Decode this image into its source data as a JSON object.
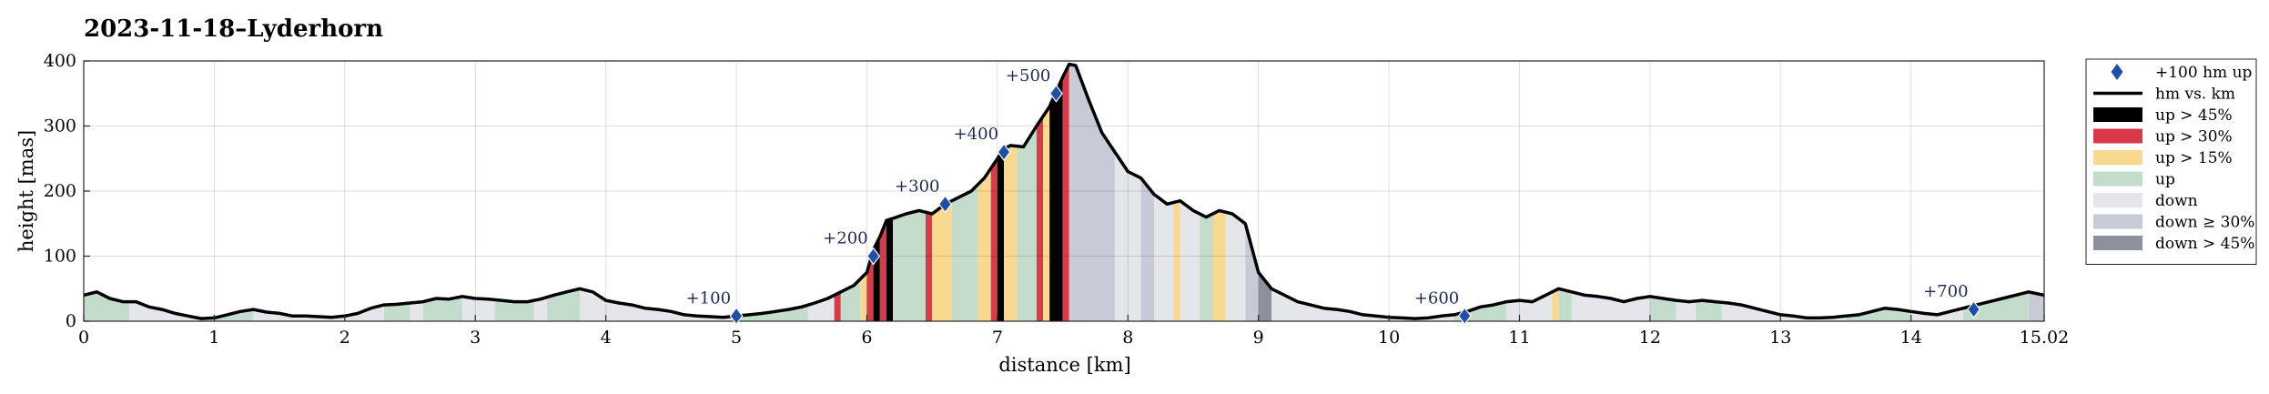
{
  "chart_data": {
    "type": "area",
    "title": "2023-11-18–Lyderhorn",
    "xlabel": "distance [km]",
    "ylabel": "height [mas]",
    "xlim": [
      0,
      15.02
    ],
    "ylim": [
      0,
      400
    ],
    "xticks": [
      "0",
      "1",
      "2",
      "3",
      "4",
      "5",
      "6",
      "7",
      "8",
      "9",
      "10",
      "11",
      "12",
      "13",
      "14",
      "15.02"
    ],
    "xtick_values": [
      0,
      1,
      2,
      3,
      4,
      5,
      6,
      7,
      8,
      9,
      10,
      11,
      12,
      13,
      14,
      15.02
    ],
    "yticks": [
      "0",
      "100",
      "200",
      "300",
      "400"
    ],
    "ytick_values": [
      0,
      100,
      200,
      300,
      400
    ],
    "grid": true,
    "legend_position": "outside-right",
    "legend": [
      {
        "key": "milestone",
        "label": "+100 hm up",
        "style": "marker",
        "color": "#1f4fa8"
      },
      {
        "key": "line",
        "label": "hm vs. km",
        "style": "line",
        "color": "#000000"
      },
      {
        "key": "up45",
        "label": "up > 45%",
        "style": "patch",
        "color": "#000000"
      },
      {
        "key": "up30",
        "label": "up > 30%",
        "style": "patch",
        "color": "#d93a4a"
      },
      {
        "key": "up15",
        "label": "up > 15%",
        "style": "patch",
        "color": "#f9d98f"
      },
      {
        "key": "up",
        "label": "up",
        "style": "patch",
        "color": "#c3dccb"
      },
      {
        "key": "down",
        "label": "down",
        "style": "patch",
        "color": "#e4e6e9"
      },
      {
        "key": "down30",
        "label": "down ≥ 30%",
        "style": "patch",
        "color": "#c8cad6"
      },
      {
        "key": "down45",
        "label": "down > 45%",
        "style": "patch",
        "color": "#8f909d"
      }
    ],
    "series": [
      {
        "name": "hm vs. km",
        "x": [
          0,
          0.1,
          0.2,
          0.3,
          0.4,
          0.5,
          0.6,
          0.7,
          0.8,
          0.9,
          1.0,
          1.1,
          1.2,
          1.3,
          1.4,
          1.5,
          1.6,
          1.7,
          1.8,
          1.9,
          2.0,
          2.1,
          2.2,
          2.3,
          2.4,
          2.5,
          2.6,
          2.7,
          2.8,
          2.9,
          3.0,
          3.1,
          3.2,
          3.3,
          3.4,
          3.5,
          3.6,
          3.7,
          3.8,
          3.9,
          4.0,
          4.1,
          4.2,
          4.3,
          4.4,
          4.5,
          4.6,
          4.7,
          4.8,
          4.9,
          5.0,
          5.1,
          5.2,
          5.3,
          5.4,
          5.5,
          5.6,
          5.7,
          5.8,
          5.9,
          6.0,
          6.05,
          6.1,
          6.15,
          6.2,
          6.3,
          6.4,
          6.5,
          6.6,
          6.7,
          6.8,
          6.9,
          7.0,
          7.05,
          7.1,
          7.2,
          7.3,
          7.4,
          7.5,
          7.55,
          7.6,
          7.7,
          7.8,
          7.9,
          8.0,
          8.1,
          8.2,
          8.3,
          8.4,
          8.5,
          8.6,
          8.7,
          8.8,
          8.9,
          9.0,
          9.1,
          9.2,
          9.3,
          9.4,
          9.5,
          9.6,
          9.7,
          9.8,
          9.9,
          10.0,
          10.1,
          10.2,
          10.3,
          10.4,
          10.5,
          10.6,
          10.7,
          10.8,
          10.9,
          11.0,
          11.1,
          11.2,
          11.3,
          11.4,
          11.5,
          11.6,
          11.7,
          11.8,
          11.9,
          12.0,
          12.1,
          12.2,
          12.3,
          12.4,
          12.5,
          12.6,
          12.7,
          12.8,
          12.9,
          13.0,
          13.1,
          13.2,
          13.3,
          13.4,
          13.5,
          13.6,
          13.7,
          13.8,
          13.9,
          14.0,
          14.1,
          14.2,
          14.3,
          14.4,
          14.5,
          14.6,
          14.7,
          14.8,
          14.9,
          15.02
        ],
        "y": [
          40,
          45,
          35,
          30,
          30,
          22,
          18,
          12,
          8,
          4,
          5,
          10,
          15,
          18,
          14,
          12,
          8,
          8,
          7,
          6,
          8,
          12,
          20,
          25,
          26,
          28,
          30,
          35,
          34,
          38,
          35,
          34,
          32,
          30,
          30,
          34,
          40,
          45,
          50,
          45,
          32,
          28,
          25,
          20,
          18,
          15,
          10,
          8,
          7,
          6,
          8,
          10,
          12,
          15,
          18,
          22,
          28,
          35,
          45,
          55,
          75,
          110,
          130,
          155,
          158,
          165,
          170,
          165,
          180,
          190,
          200,
          220,
          250,
          265,
          270,
          268,
          300,
          330,
          375,
          395,
          393,
          340,
          290,
          260,
          230,
          220,
          195,
          180,
          185,
          170,
          160,
          170,
          165,
          150,
          75,
          50,
          40,
          30,
          25,
          20,
          18,
          15,
          10,
          8,
          6,
          5,
          4,
          5,
          8,
          10,
          15,
          22,
          25,
          30,
          32,
          30,
          40,
          50,
          45,
          40,
          38,
          35,
          30,
          35,
          38,
          35,
          32,
          30,
          32,
          30,
          28,
          25,
          20,
          15,
          10,
          8,
          5,
          5,
          6,
          8,
          10,
          15,
          20,
          18,
          15,
          12,
          10,
          15,
          20,
          25,
          30,
          35,
          40,
          45,
          40
        ]
      }
    ],
    "bands": [
      {
        "x0": 0.0,
        "x1": 0.3,
        "cat": "up"
      },
      {
        "x0": 0.3,
        "x1": 0.35,
        "cat": "up"
      },
      {
        "x0": 0.35,
        "x1": 1.0,
        "cat": "down"
      },
      {
        "x0": 1.0,
        "x1": 1.3,
        "cat": "up"
      },
      {
        "x0": 1.3,
        "x1": 2.0,
        "cat": "down"
      },
      {
        "x0": 2.0,
        "x1": 2.3,
        "cat": "down"
      },
      {
        "x0": 2.3,
        "x1": 2.5,
        "cat": "up"
      },
      {
        "x0": 2.5,
        "x1": 2.6,
        "cat": "down"
      },
      {
        "x0": 2.6,
        "x1": 2.9,
        "cat": "up"
      },
      {
        "x0": 2.9,
        "x1": 3.15,
        "cat": "down"
      },
      {
        "x0": 3.15,
        "x1": 3.45,
        "cat": "up"
      },
      {
        "x0": 3.45,
        "x1": 3.55,
        "cat": "down"
      },
      {
        "x0": 3.55,
        "x1": 3.8,
        "cat": "up"
      },
      {
        "x0": 3.8,
        "x1": 4.7,
        "cat": "down"
      },
      {
        "x0": 4.7,
        "x1": 5.0,
        "cat": "down"
      },
      {
        "x0": 5.0,
        "x1": 5.55,
        "cat": "up"
      },
      {
        "x0": 5.55,
        "x1": 5.75,
        "cat": "down"
      },
      {
        "x0": 5.75,
        "x1": 5.8,
        "cat": "up30"
      },
      {
        "x0": 5.8,
        "x1": 5.95,
        "cat": "up"
      },
      {
        "x0": 5.95,
        "x1": 6.0,
        "cat": "up15"
      },
      {
        "x0": 6.0,
        "x1": 6.05,
        "cat": "up30"
      },
      {
        "x0": 6.05,
        "x1": 6.1,
        "cat": "up45"
      },
      {
        "x0": 6.1,
        "x1": 6.15,
        "cat": "up30"
      },
      {
        "x0": 6.15,
        "x1": 6.2,
        "cat": "up45"
      },
      {
        "x0": 6.2,
        "x1": 6.45,
        "cat": "up"
      },
      {
        "x0": 6.45,
        "x1": 6.5,
        "cat": "up30"
      },
      {
        "x0": 6.5,
        "x1": 6.65,
        "cat": "up15"
      },
      {
        "x0": 6.65,
        "x1": 6.85,
        "cat": "up"
      },
      {
        "x0": 6.85,
        "x1": 6.95,
        "cat": "up15"
      },
      {
        "x0": 6.95,
        "x1": 7.0,
        "cat": "up30"
      },
      {
        "x0": 7.0,
        "x1": 7.05,
        "cat": "up45"
      },
      {
        "x0": 7.05,
        "x1": 7.15,
        "cat": "up15"
      },
      {
        "x0": 7.15,
        "x1": 7.3,
        "cat": "up"
      },
      {
        "x0": 7.3,
        "x1": 7.35,
        "cat": "up30"
      },
      {
        "x0": 7.35,
        "x1": 7.4,
        "cat": "up15"
      },
      {
        "x0": 7.4,
        "x1": 7.5,
        "cat": "up45"
      },
      {
        "x0": 7.5,
        "x1": 7.55,
        "cat": "up30"
      },
      {
        "x0": 7.55,
        "x1": 7.9,
        "cat": "down30"
      },
      {
        "x0": 7.9,
        "x1": 8.1,
        "cat": "down"
      },
      {
        "x0": 8.1,
        "x1": 8.2,
        "cat": "down30"
      },
      {
        "x0": 8.2,
        "x1": 8.35,
        "cat": "down"
      },
      {
        "x0": 8.35,
        "x1": 8.4,
        "cat": "up15"
      },
      {
        "x0": 8.4,
        "x1": 8.55,
        "cat": "down"
      },
      {
        "x0": 8.55,
        "x1": 8.65,
        "cat": "up"
      },
      {
        "x0": 8.65,
        "x1": 8.75,
        "cat": "up15"
      },
      {
        "x0": 8.75,
        "x1": 8.9,
        "cat": "down"
      },
      {
        "x0": 8.9,
        "x1": 9.0,
        "cat": "down30"
      },
      {
        "x0": 9.0,
        "x1": 9.1,
        "cat": "down45"
      },
      {
        "x0": 9.1,
        "x1": 10.0,
        "cat": "down"
      },
      {
        "x0": 10.0,
        "x1": 10.5,
        "cat": "down"
      },
      {
        "x0": 10.5,
        "x1": 10.9,
        "cat": "up"
      },
      {
        "x0": 10.9,
        "x1": 11.25,
        "cat": "down"
      },
      {
        "x0": 11.25,
        "x1": 11.3,
        "cat": "up15"
      },
      {
        "x0": 11.3,
        "x1": 11.4,
        "cat": "up"
      },
      {
        "x0": 11.4,
        "x1": 12.0,
        "cat": "down"
      },
      {
        "x0": 12.0,
        "x1": 12.2,
        "cat": "up"
      },
      {
        "x0": 12.2,
        "x1": 12.35,
        "cat": "down"
      },
      {
        "x0": 12.35,
        "x1": 12.55,
        "cat": "up"
      },
      {
        "x0": 12.55,
        "x1": 13.5,
        "cat": "down"
      },
      {
        "x0": 13.5,
        "x1": 14.0,
        "cat": "up"
      },
      {
        "x0": 14.0,
        "x1": 14.4,
        "cat": "down"
      },
      {
        "x0": 14.4,
        "x1": 14.9,
        "cat": "up"
      },
      {
        "x0": 14.9,
        "x1": 15.02,
        "cat": "down30"
      }
    ],
    "milestones": [
      {
        "label": "+100",
        "x": 5.0,
        "y": 8
      },
      {
        "label": "+200",
        "x": 6.05,
        "y": 100
      },
      {
        "label": "+300",
        "x": 6.6,
        "y": 180
      },
      {
        "label": "+400",
        "x": 7.05,
        "y": 260
      },
      {
        "label": "+500",
        "x": 7.45,
        "y": 350
      },
      {
        "label": "+600",
        "x": 10.58,
        "y": 8
      },
      {
        "label": "+700",
        "x": 14.48,
        "y": 18
      }
    ]
  }
}
